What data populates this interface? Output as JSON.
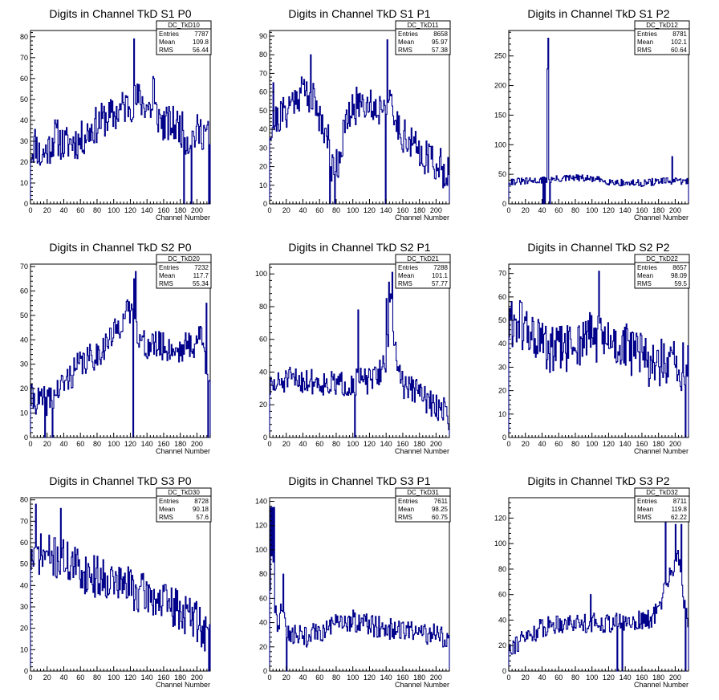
{
  "figure": {
    "colors": {
      "histogram": "#00008b",
      "axis": "#000000",
      "background": "#ffffff"
    },
    "x_axis_label": "Channel Number"
  },
  "stat_labels": {
    "entries": "Entries",
    "mean": "Mean",
    "rms": "RMS"
  },
  "chart_data": [
    {
      "type": "histogram",
      "title": "Digits in Channel TkD S1 P0",
      "name": "DC_TkD10",
      "entries": "7787",
      "mean": "109.8",
      "rms": "56.44",
      "xlabel": "Channel Number",
      "xlim": [
        0,
        216
      ],
      "ylim": [
        0,
        83
      ],
      "x_ticks": [
        0,
        20,
        40,
        60,
        80,
        100,
        120,
        140,
        160,
        180,
        200
      ],
      "y_ticks": [
        0,
        10,
        20,
        30,
        40,
        50,
        60,
        70,
        80
      ],
      "profile": [
        [
          0,
          24
        ],
        [
          6,
          30
        ],
        [
          12,
          22
        ],
        [
          18,
          25
        ],
        [
          24,
          28
        ],
        [
          30,
          33
        ],
        [
          40,
          28
        ],
        [
          50,
          30
        ],
        [
          60,
          30
        ],
        [
          70,
          35
        ],
        [
          80,
          38
        ],
        [
          90,
          41
        ],
        [
          100,
          42
        ],
        [
          110,
          46
        ],
        [
          120,
          48
        ],
        [
          130,
          50
        ],
        [
          140,
          47
        ],
        [
          150,
          44
        ],
        [
          160,
          38
        ],
        [
          170,
          38
        ],
        [
          180,
          37
        ],
        [
          190,
          30
        ],
        [
          200,
          34
        ],
        [
          210,
          35
        ],
        [
          216,
          30
        ]
      ],
      "noise": 9,
      "spikes": [
        [
          124,
          79
        ],
        [
          184,
          0
        ],
        [
          193,
          0
        ],
        [
          214,
          0
        ],
        [
          148,
          60
        ],
        [
          147,
          61
        ]
      ],
      "seed": 11
    },
    {
      "type": "histogram",
      "title": "Digits in Channel TkD S1 P1",
      "name": "DC_TkD11",
      "entries": "8658",
      "mean": "95.97",
      "rms": "57.38",
      "xlabel": "Channel Number",
      "xlim": [
        0,
        216
      ],
      "ylim": [
        0,
        93
      ],
      "x_ticks": [
        0,
        20,
        40,
        60,
        80,
        100,
        120,
        140,
        160,
        180,
        200
      ],
      "y_ticks": [
        0,
        10,
        20,
        30,
        40,
        50,
        60,
        70,
        80,
        90
      ],
      "profile": [
        [
          0,
          40
        ],
        [
          10,
          46
        ],
        [
          20,
          50
        ],
        [
          30,
          57
        ],
        [
          40,
          62
        ],
        [
          50,
          58
        ],
        [
          60,
          48
        ],
        [
          70,
          35
        ],
        [
          75,
          20
        ],
        [
          82,
          22
        ],
        [
          90,
          40
        ],
        [
          100,
          50
        ],
        [
          110,
          56
        ],
        [
          120,
          54
        ],
        [
          130,
          50
        ],
        [
          140,
          58
        ],
        [
          150,
          45
        ],
        [
          160,
          38
        ],
        [
          170,
          32
        ],
        [
          180,
          28
        ],
        [
          190,
          25
        ],
        [
          200,
          22
        ],
        [
          210,
          18
        ],
        [
          216,
          20
        ]
      ],
      "noise": 10,
      "spikes": [
        [
          49,
          80
        ],
        [
          72,
          0
        ],
        [
          78,
          0
        ],
        [
          139,
          0
        ],
        [
          141,
          88
        ],
        [
          4,
          65
        ]
      ],
      "seed": 21
    },
    {
      "type": "histogram",
      "title": "Digits in Channel TkD S1 P2",
      "name": "DC_TkD12",
      "entries": "8781",
      "mean": "102.1",
      "rms": "60.64",
      "xlabel": "Channel Number",
      "xlim": [
        0,
        216
      ],
      "ylim": [
        0,
        293
      ],
      "x_ticks": [
        0,
        20,
        40,
        60,
        80,
        100,
        120,
        140,
        160,
        180,
        200
      ],
      "y_ticks": [
        0,
        50,
        100,
        150,
        200,
        250
      ],
      "profile": [
        [
          0,
          38
        ],
        [
          20,
          38
        ],
        [
          40,
          40
        ],
        [
          60,
          42
        ],
        [
          80,
          44
        ],
        [
          100,
          42
        ],
        [
          120,
          38
        ],
        [
          140,
          35
        ],
        [
          160,
          35
        ],
        [
          180,
          38
        ],
        [
          200,
          38
        ],
        [
          216,
          38
        ]
      ],
      "noise": 6,
      "spikes": [
        [
          46,
          228
        ],
        [
          47,
          280
        ],
        [
          41,
          0
        ],
        [
          43,
          0
        ],
        [
          49,
          0
        ],
        [
          196,
          80
        ]
      ],
      "seed": 31
    },
    {
      "type": "histogram",
      "title": "Digits in Channel TkD S2 P0",
      "name": "DC_TkD20",
      "entries": "7232",
      "mean": "117.7",
      "rms": "55.34",
      "xlabel": "Channel Number",
      "xlim": [
        0,
        216
      ],
      "ylim": [
        0,
        71
      ],
      "x_ticks": [
        0,
        20,
        40,
        60,
        80,
        100,
        120,
        140,
        160,
        180,
        200
      ],
      "y_ticks": [
        0,
        10,
        20,
        30,
        40,
        50,
        60,
        70
      ],
      "profile": [
        [
          0,
          16
        ],
        [
          10,
          15
        ],
        [
          20,
          15
        ],
        [
          30,
          18
        ],
        [
          40,
          22
        ],
        [
          50,
          26
        ],
        [
          60,
          30
        ],
        [
          70,
          32
        ],
        [
          80,
          34
        ],
        [
          90,
          38
        ],
        [
          100,
          42
        ],
        [
          110,
          48
        ],
        [
          120,
          52
        ],
        [
          125,
          55
        ],
        [
          130,
          40
        ],
        [
          140,
          37
        ],
        [
          150,
          38
        ],
        [
          160,
          37
        ],
        [
          170,
          36
        ],
        [
          180,
          36
        ],
        [
          190,
          38
        ],
        [
          200,
          38
        ],
        [
          205,
          45
        ],
        [
          210,
          30
        ],
        [
          216,
          28
        ]
      ],
      "noise": 6,
      "spikes": [
        [
          17,
          0
        ],
        [
          26,
          0
        ],
        [
          123,
          0
        ],
        [
          124,
          65
        ],
        [
          126,
          68
        ],
        [
          213,
          0
        ],
        [
          211,
          55
        ]
      ],
      "seed": 41
    },
    {
      "type": "histogram",
      "title": "Digits in Channel TkD S2 P1",
      "name": "DC_TkD21",
      "entries": "7288",
      "mean": "101.1",
      "rms": "57.77",
      "xlabel": "Channel Number",
      "xlim": [
        0,
        216
      ],
      "ylim": [
        0,
        106
      ],
      "x_ticks": [
        0,
        20,
        40,
        60,
        80,
        100,
        120,
        140,
        160,
        180,
        200
      ],
      "y_ticks": [
        0,
        20,
        40,
        60,
        80,
        100
      ],
      "profile": [
        [
          0,
          30
        ],
        [
          20,
          35
        ],
        [
          40,
          35
        ],
        [
          60,
          34
        ],
        [
          80,
          32
        ],
        [
          100,
          33
        ],
        [
          110,
          35
        ],
        [
          120,
          34
        ],
        [
          130,
          38
        ],
        [
          140,
          48
        ],
        [
          147,
          90
        ],
        [
          150,
          55
        ],
        [
          160,
          32
        ],
        [
          170,
          30
        ],
        [
          180,
          28
        ],
        [
          190,
          22
        ],
        [
          200,
          18
        ],
        [
          210,
          18
        ],
        [
          216,
          12
        ]
      ],
      "noise": 8,
      "spikes": [
        [
          102,
          0
        ],
        [
          106,
          78
        ],
        [
          147,
          101
        ],
        [
          140,
          85
        ],
        [
          143,
          95
        ]
      ],
      "seed": 51
    },
    {
      "type": "histogram",
      "title": "Digits in Channel TkD S2 P2",
      "name": "DC_TkD22",
      "entries": "8657",
      "mean": "98.09",
      "rms": "59.5",
      "xlabel": "Channel Number",
      "xlim": [
        0,
        216
      ],
      "ylim": [
        0,
        74
      ],
      "x_ticks": [
        0,
        20,
        40,
        60,
        80,
        100,
        120,
        140,
        160,
        180,
        200
      ],
      "y_ticks": [
        0,
        10,
        20,
        30,
        40,
        50,
        60,
        70
      ],
      "profile": [
        [
          0,
          48
        ],
        [
          10,
          50
        ],
        [
          20,
          46
        ],
        [
          30,
          43
        ],
        [
          40,
          40
        ],
        [
          50,
          36
        ],
        [
          60,
          38
        ],
        [
          70,
          38
        ],
        [
          80,
          40
        ],
        [
          90,
          42
        ],
        [
          100,
          44
        ],
        [
          110,
          42
        ],
        [
          120,
          40
        ],
        [
          130,
          40
        ],
        [
          140,
          38
        ],
        [
          150,
          37
        ],
        [
          160,
          34
        ],
        [
          170,
          32
        ],
        [
          180,
          32
        ],
        [
          190,
          30
        ],
        [
          200,
          30
        ],
        [
          210,
          30
        ],
        [
          216,
          30
        ]
      ],
      "noise": 11,
      "spikes": [
        [
          108,
          71
        ],
        [
          212,
          0
        ],
        [
          207,
          20
        ]
      ],
      "seed": 61
    },
    {
      "type": "histogram",
      "title": "Digits in Channel TkD S3 P0",
      "name": "DC_TkD30",
      "entries": "8728",
      "mean": "90.18",
      "rms": "57.6",
      "xlabel": "Channel Number",
      "xlim": [
        0,
        216
      ],
      "ylim": [
        0,
        81
      ],
      "x_ticks": [
        0,
        20,
        40,
        60,
        80,
        100,
        120,
        140,
        160,
        180,
        200
      ],
      "y_ticks": [
        0,
        10,
        20,
        30,
        40,
        50,
        60,
        70,
        80
      ],
      "profile": [
        [
          0,
          52
        ],
        [
          10,
          55
        ],
        [
          20,
          54
        ],
        [
          30,
          53
        ],
        [
          40,
          52
        ],
        [
          50,
          50
        ],
        [
          60,
          47
        ],
        [
          70,
          45
        ],
        [
          80,
          44
        ],
        [
          90,
          44
        ],
        [
          100,
          42
        ],
        [
          110,
          40
        ],
        [
          120,
          40
        ],
        [
          130,
          36
        ],
        [
          140,
          36
        ],
        [
          150,
          34
        ],
        [
          160,
          32
        ],
        [
          170,
          30
        ],
        [
          180,
          28
        ],
        [
          190,
          26
        ],
        [
          200,
          24
        ],
        [
          210,
          18
        ],
        [
          216,
          15
        ]
      ],
      "noise": 10,
      "spikes": [
        [
          6,
          78
        ],
        [
          36,
          76
        ],
        [
          214,
          0
        ]
      ],
      "seed": 71
    },
    {
      "type": "histogram",
      "title": "Digits in Channel TkD S3 P1",
      "name": "DC_TkD31",
      "entries": "7611",
      "mean": "98.25",
      "rms": "60.75",
      "xlabel": "Channel Number",
      "xlim": [
        0,
        216
      ],
      "ylim": [
        0,
        143
      ],
      "x_ticks": [
        0,
        20,
        40,
        60,
        80,
        100,
        120,
        140,
        160,
        180,
        200
      ],
      "y_ticks": [
        0,
        20,
        40,
        60,
        80,
        100,
        120,
        140
      ],
      "profile": [
        [
          0,
          60
        ],
        [
          3,
          125
        ],
        [
          5,
          60
        ],
        [
          10,
          35
        ],
        [
          16,
          55
        ],
        [
          20,
          35
        ],
        [
          30,
          30
        ],
        [
          40,
          28
        ],
        [
          60,
          32
        ],
        [
          80,
          38
        ],
        [
          100,
          42
        ],
        [
          120,
          38
        ],
        [
          140,
          35
        ],
        [
          160,
          33
        ],
        [
          180,
          32
        ],
        [
          200,
          30
        ],
        [
          216,
          25
        ]
      ],
      "noise": 9,
      "spikes": [
        [
          1,
          135
        ],
        [
          2,
          95
        ],
        [
          3,
          135
        ],
        [
          4,
          90
        ],
        [
          5,
          135
        ],
        [
          16,
          80
        ],
        [
          20,
          0
        ]
      ],
      "seed": 81
    },
    {
      "type": "histogram",
      "title": "Digits in Channel TkD S3 P2",
      "name": "DC_TkD32",
      "entries": "8711",
      "mean": "119.8",
      "rms": "62.22",
      "xlabel": "Channel Number",
      "xlim": [
        0,
        216
      ],
      "ylim": [
        0,
        136
      ],
      "x_ticks": [
        0,
        20,
        40,
        60,
        80,
        100,
        120,
        140,
        160,
        180,
        200
      ],
      "y_ticks": [
        0,
        20,
        40,
        60,
        80,
        100,
        120
      ],
      "profile": [
        [
          0,
          20
        ],
        [
          10,
          22
        ],
        [
          20,
          26
        ],
        [
          30,
          30
        ],
        [
          40,
          34
        ],
        [
          60,
          38
        ],
        [
          80,
          38
        ],
        [
          100,
          38
        ],
        [
          120,
          38
        ],
        [
          140,
          38
        ],
        [
          160,
          40
        ],
        [
          170,
          40
        ],
        [
          180,
          48
        ],
        [
          190,
          70
        ],
        [
          200,
          85
        ],
        [
          205,
          88
        ],
        [
          210,
          60
        ],
        [
          216,
          30
        ]
      ],
      "noise": 8,
      "spikes": [
        [
          130,
          0
        ],
        [
          136,
          0
        ],
        [
          188,
          125
        ],
        [
          200,
          115
        ],
        [
          207,
          115
        ],
        [
          212,
          0
        ],
        [
          98,
          60
        ]
      ],
      "seed": 91
    }
  ]
}
